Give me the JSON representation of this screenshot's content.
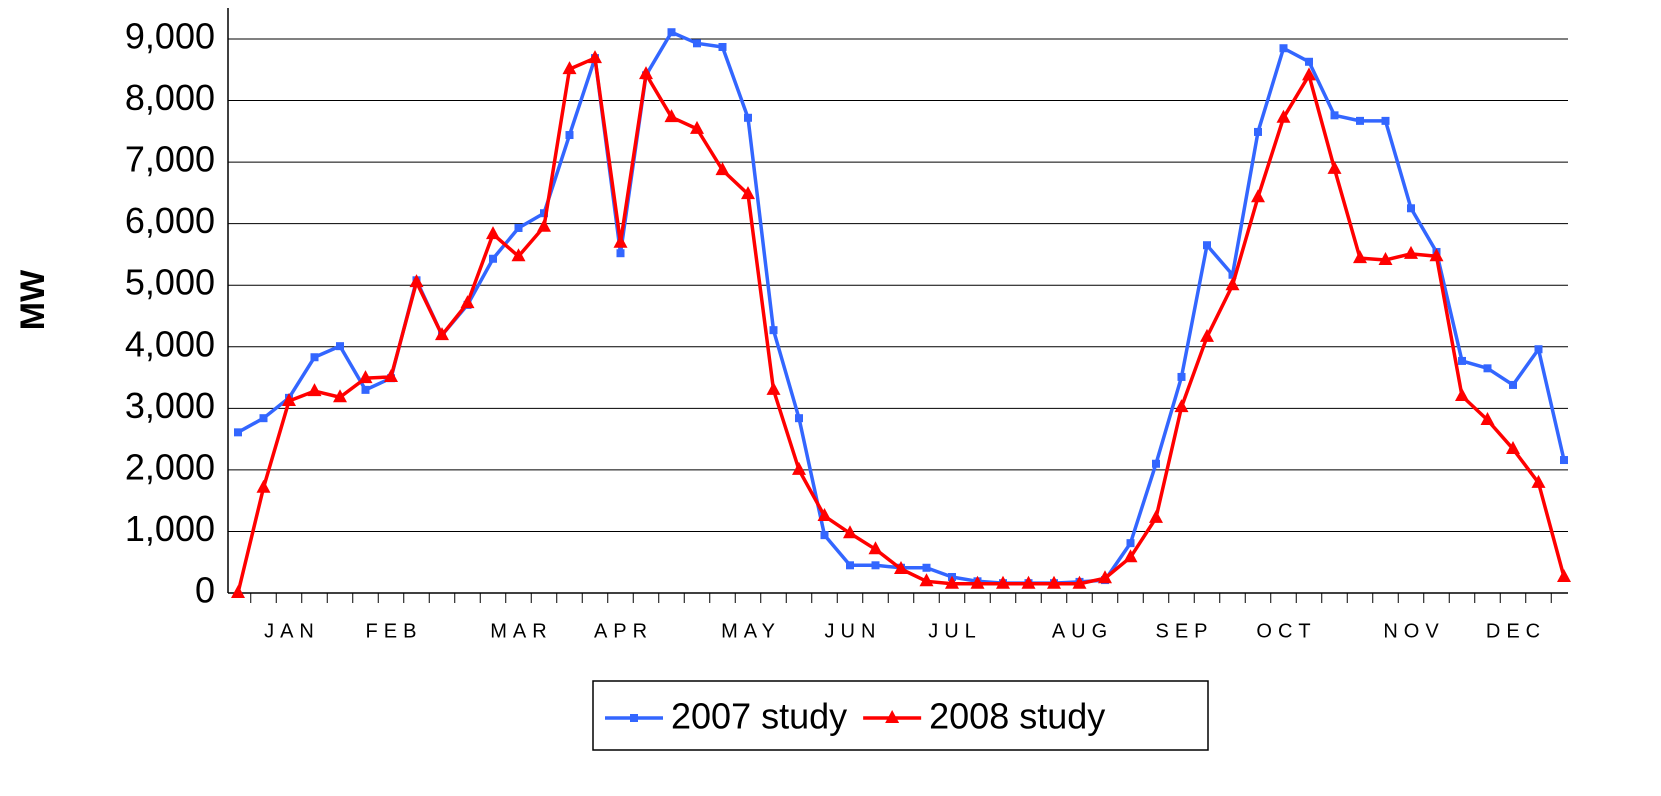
{
  "chart_data": {
    "type": "line",
    "y_label": "MW",
    "categories": [
      null,
      null,
      "JAN",
      null,
      null,
      null,
      "FEB",
      null,
      null,
      null,
      null,
      "MAR",
      null,
      null,
      null,
      "APR",
      null,
      null,
      null,
      null,
      "MAY",
      null,
      null,
      null,
      "JUN",
      null,
      null,
      null,
      "JUL",
      null,
      null,
      null,
      null,
      "AUG",
      null,
      null,
      null,
      "SEP",
      null,
      null,
      null,
      "OCT",
      null,
      null,
      null,
      null,
      "NOV",
      null,
      null,
      null,
      "DEC",
      null,
      null
    ],
    "series": [
      {
        "name": "2007 study",
        "color": "#3366ff",
        "marker": "square",
        "values": [
          2610,
          2840,
          3170,
          3830,
          4010,
          3300,
          3490,
          5080,
          4190,
          4680,
          5430,
          5930,
          6170,
          7440,
          8690,
          5520,
          8410,
          9110,
          8930,
          8870,
          7720,
          4270,
          2840,
          940,
          450,
          450,
          410,
          410,
          260,
          190,
          160,
          160,
          160,
          180,
          210,
          810,
          2100,
          3510,
          5650,
          5170,
          7490,
          8850,
          8630,
          7760,
          7670,
          7670,
          6250,
          5540,
          3770,
          3650,
          3380,
          3960,
          2160
        ]
      },
      {
        "name": "2008 study",
        "color": "#ff0000",
        "marker": "triangle",
        "values": [
          0,
          1710,
          3120,
          3280,
          3180,
          3490,
          3510,
          5050,
          4190,
          4710,
          5830,
          5470,
          5950,
          8510,
          8690,
          5690,
          8430,
          7730,
          7540,
          6870,
          6480,
          3300,
          2000,
          1250,
          970,
          710,
          390,
          190,
          150,
          150,
          150,
          150,
          150,
          150,
          240,
          580,
          1220,
          3020,
          4160,
          5000,
          6430,
          7720,
          8410,
          6890,
          5440,
          5410,
          5510,
          5470,
          3200,
          2810,
          2340,
          1790,
          260
        ]
      }
    ],
    "ylim": [
      0,
      9000
    ],
    "yticks": [
      0,
      {
        "value": 1000,
        "label": "1,000"
      },
      {
        "value": 2000,
        "label": "2,000"
      },
      {
        "value": 3000,
        "label": "3,000"
      },
      {
        "value": 4000,
        "label": "4,000"
      },
      {
        "value": 5000,
        "label": "5,000"
      },
      {
        "value": 6000,
        "label": "6,000"
      },
      {
        "value": 7000,
        "label": "7,000"
      },
      {
        "value": 8000,
        "label": "8,000"
      },
      {
        "value": 9000,
        "label": "9,000"
      }
    ],
    "grid": true,
    "legend": "bottom"
  }
}
